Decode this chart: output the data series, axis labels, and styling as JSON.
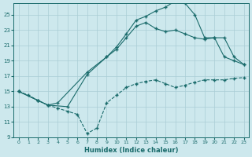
{
  "xlabel": "Humidex (Indice chaleur)",
  "xlim": [
    -0.5,
    23.5
  ],
  "ylim": [
    9,
    26.5
  ],
  "xticks": [
    0,
    1,
    2,
    3,
    4,
    5,
    6,
    7,
    8,
    9,
    10,
    11,
    12,
    13,
    14,
    15,
    16,
    17,
    18,
    19,
    20,
    21,
    22,
    23
  ],
  "yticks": [
    9,
    11,
    13,
    15,
    17,
    19,
    21,
    23,
    25
  ],
  "bg_color": "#cde8ed",
  "grid_color": "#aacdd5",
  "line_color": "#1a6b6b",
  "curve_bottom_x": [
    0,
    1,
    2,
    3,
    4,
    5,
    6,
    7,
    8,
    9,
    10,
    11,
    12,
    13,
    14,
    15,
    16,
    17,
    18,
    19,
    20,
    21,
    22,
    23
  ],
  "curve_bottom_y": [
    15.0,
    14.5,
    13.8,
    13.2,
    12.8,
    12.4,
    12.0,
    9.5,
    10.2,
    13.5,
    14.5,
    15.5,
    16.0,
    16.3,
    16.5,
    16.0,
    15.5,
    15.8,
    16.2,
    16.5,
    16.5,
    16.5,
    16.7,
    16.8
  ],
  "curve_mid_x": [
    0,
    2,
    3,
    4,
    7,
    9,
    10,
    11,
    12,
    13,
    14,
    15,
    16,
    17,
    18,
    19,
    20,
    21,
    22,
    23
  ],
  "curve_mid_y": [
    15.0,
    13.8,
    13.2,
    13.5,
    17.5,
    19.5,
    20.5,
    22.0,
    23.5,
    24.0,
    23.2,
    22.8,
    23.0,
    22.5,
    22.0,
    21.8,
    22.0,
    19.5,
    19.0,
    18.5
  ],
  "curve_top_x": [
    0,
    2,
    3,
    5,
    7,
    9,
    10,
    11,
    12,
    13,
    14,
    15,
    16,
    17,
    18,
    19,
    20,
    21,
    22,
    23
  ],
  "curve_top_y": [
    15.0,
    13.8,
    13.2,
    13.0,
    17.2,
    19.5,
    20.8,
    22.5,
    24.3,
    24.8,
    25.5,
    26.0,
    26.8,
    26.5,
    25.0,
    22.0,
    22.0,
    22.0,
    19.5,
    18.5
  ]
}
